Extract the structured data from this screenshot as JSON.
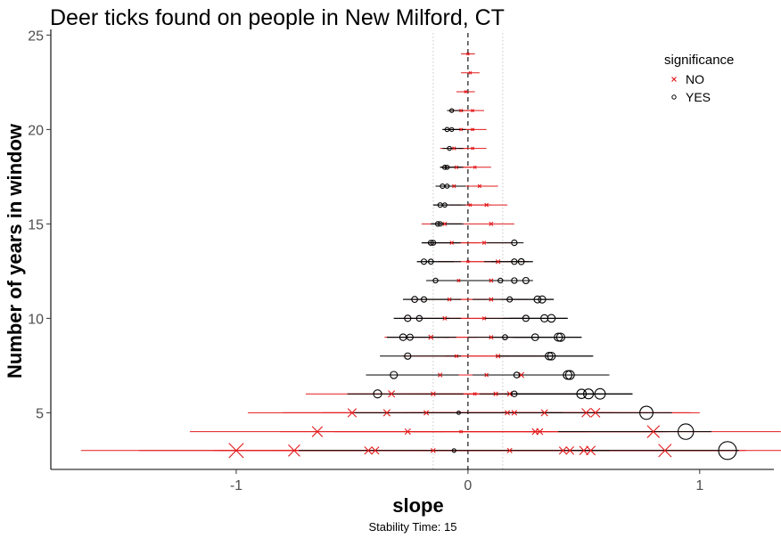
{
  "chart_data": {
    "type": "scatter",
    "title": "Deer ticks found on people in New Milford, CT",
    "xlabel": "slope",
    "ylabel": "Number of years in window",
    "caption": "Stability Time: 15",
    "xlim": [
      -1.8,
      1.32
    ],
    "ylim": [
      2.0,
      25.3
    ],
    "x_ticks": [
      -1,
      0,
      1
    ],
    "x_tick_labels": [
      "-1",
      "0",
      "1"
    ],
    "y_ticks": [
      5,
      10,
      15,
      20,
      25
    ],
    "y_tick_labels": [
      "5",
      "10",
      "15",
      "20",
      "25"
    ],
    "reference_lines": {
      "dashed_vertical_x": 0,
      "dotted_vertical_x": [
        -0.15,
        0.15
      ]
    },
    "grid": false,
    "legend": {
      "title": "significance",
      "position": "top-right",
      "entries": [
        {
          "label": "NO",
          "marker": "cross",
          "color": "#e31a1c"
        },
        {
          "label": "YES",
          "marker": "circle",
          "color": "#000000"
        }
      ]
    },
    "colors": {
      "NO": "#e31a1c",
      "YES": "#000000"
    },
    "series": [
      {
        "name": "NO",
        "marker": "cross",
        "color": "#e31a1c",
        "points": [
          {
            "y": 3,
            "slope": -1.0,
            "lo": -1.67,
            "hi": -0.32
          },
          {
            "y": 3,
            "slope": -0.75,
            "lo": -1.42,
            "hi": -0.08
          },
          {
            "y": 3,
            "slope": -0.43,
            "lo": -1.1,
            "hi": 0.24
          },
          {
            "y": 3,
            "slope": -0.4,
            "lo": -1.07,
            "hi": 0.27
          },
          {
            "y": 3,
            "slope": -0.15,
            "lo": -0.82,
            "hi": 0.52
          },
          {
            "y": 3,
            "slope": 0.18,
            "lo": -0.49,
            "hi": 0.85
          },
          {
            "y": 3,
            "slope": 0.41,
            "lo": -0.26,
            "hi": 1.08
          },
          {
            "y": 3,
            "slope": 0.44,
            "lo": -0.23,
            "hi": 1.11
          },
          {
            "y": 3,
            "slope": 0.5,
            "lo": -0.17,
            "hi": 1.17
          },
          {
            "y": 3,
            "slope": 0.53,
            "lo": -0.14,
            "hi": 1.2
          },
          {
            "y": 3,
            "slope": 0.85,
            "lo": 0.18,
            "hi": 1.52
          },
          {
            "y": 4,
            "slope": -0.65,
            "lo": -1.2,
            "hi": -0.1
          },
          {
            "y": 4,
            "slope": -0.26,
            "lo": -0.81,
            "hi": 0.29
          },
          {
            "y": 4,
            "slope": -0.03,
            "lo": -0.58,
            "hi": 0.52
          },
          {
            "y": 4,
            "slope": 0.29,
            "lo": -0.26,
            "hi": 0.84
          },
          {
            "y": 4,
            "slope": 0.31,
            "lo": -0.24,
            "hi": 0.86
          },
          {
            "y": 4,
            "slope": 0.8,
            "lo": 0.25,
            "hi": 1.35
          },
          {
            "y": 5,
            "slope": -0.5,
            "lo": -0.95,
            "hi": -0.05
          },
          {
            "y": 5,
            "slope": -0.35,
            "lo": -0.8,
            "hi": 0.1
          },
          {
            "y": 5,
            "slope": -0.18,
            "lo": -0.63,
            "hi": 0.27
          },
          {
            "y": 5,
            "slope": 0.17,
            "lo": -0.28,
            "hi": 0.62
          },
          {
            "y": 5,
            "slope": 0.2,
            "lo": -0.25,
            "hi": 0.65
          },
          {
            "y": 5,
            "slope": 0.33,
            "lo": -0.12,
            "hi": 0.78
          },
          {
            "y": 5,
            "slope": 0.51,
            "lo": 0.06,
            "hi": 0.96
          },
          {
            "y": 5,
            "slope": 0.55,
            "lo": 0.1,
            "hi": 1.0
          },
          {
            "y": 6,
            "slope": -0.33,
            "lo": -0.7,
            "hi": 0.04
          },
          {
            "y": 6,
            "slope": -0.15,
            "lo": -0.52,
            "hi": 0.22
          },
          {
            "y": 6,
            "slope": 0.03,
            "lo": -0.34,
            "hi": 0.4
          },
          {
            "y": 6,
            "slope": 0.12,
            "lo": -0.25,
            "hi": 0.49
          },
          {
            "y": 6,
            "slope": 0.18,
            "lo": -0.19,
            "hi": 0.55
          },
          {
            "y": 7,
            "slope": -0.12,
            "lo": -0.4,
            "hi": 0.16
          },
          {
            "y": 7,
            "slope": 0.08,
            "lo": -0.2,
            "hi": 0.36
          },
          {
            "y": 7,
            "slope": 0.23,
            "lo": -0.05,
            "hi": 0.51
          },
          {
            "y": 8,
            "slope": -0.05,
            "lo": -0.28,
            "hi": 0.18
          },
          {
            "y": 8,
            "slope": 0.13,
            "lo": -0.1,
            "hi": 0.36
          },
          {
            "y": 9,
            "slope": -0.16,
            "lo": -0.36,
            "hi": 0.04
          },
          {
            "y": 9,
            "slope": 0.1,
            "lo": -0.1,
            "hi": 0.3
          },
          {
            "y": 10,
            "slope": -0.1,
            "lo": -0.28,
            "hi": 0.08
          },
          {
            "y": 10,
            "slope": 0.07,
            "lo": -0.11,
            "hi": 0.25
          },
          {
            "y": 11,
            "slope": -0.08,
            "lo": -0.24,
            "hi": 0.08
          },
          {
            "y": 11,
            "slope": 0.1,
            "lo": -0.06,
            "hi": 0.26
          },
          {
            "y": 12,
            "slope": -0.04,
            "lo": -0.18,
            "hi": 0.1
          },
          {
            "y": 12,
            "slope": 0.1,
            "lo": -0.04,
            "hi": 0.24
          },
          {
            "y": 13,
            "slope": 0.0,
            "lo": -0.13,
            "hi": 0.13
          },
          {
            "y": 13,
            "slope": 0.13,
            "lo": 0.0,
            "hi": 0.26
          },
          {
            "y": 14,
            "slope": -0.07,
            "lo": -0.19,
            "hi": 0.05
          },
          {
            "y": 14,
            "slope": 0.07,
            "lo": -0.05,
            "hi": 0.19
          },
          {
            "y": 15,
            "slope": -0.1,
            "lo": -0.2,
            "hi": 0.0
          },
          {
            "y": 15,
            "slope": 0.1,
            "lo": 0.0,
            "hi": 0.2
          },
          {
            "y": 16,
            "slope": 0.01,
            "lo": -0.08,
            "hi": 0.1
          },
          {
            "y": 16,
            "slope": 0.08,
            "lo": -0.01,
            "hi": 0.17
          },
          {
            "y": 17,
            "slope": -0.06,
            "lo": -0.14,
            "hi": 0.02
          },
          {
            "y": 17,
            "slope": 0.05,
            "lo": -0.03,
            "hi": 0.13
          },
          {
            "y": 18,
            "slope": -0.05,
            "lo": -0.12,
            "hi": 0.02
          },
          {
            "y": 18,
            "slope": 0.03,
            "lo": -0.04,
            "hi": 0.1
          },
          {
            "y": 19,
            "slope": -0.06,
            "lo": -0.12,
            "hi": 0.0
          },
          {
            "y": 19,
            "slope": 0.02,
            "lo": -0.04,
            "hi": 0.08
          },
          {
            "y": 20,
            "slope": -0.03,
            "lo": -0.09,
            "hi": 0.03
          },
          {
            "y": 20,
            "slope": 0.02,
            "lo": -0.04,
            "hi": 0.08
          },
          {
            "y": 21,
            "slope": -0.03,
            "lo": -0.08,
            "hi": 0.02
          },
          {
            "y": 21,
            "slope": 0.02,
            "lo": -0.03,
            "hi": 0.07
          },
          {
            "y": 22,
            "slope": -0.01,
            "lo": -0.05,
            "hi": 0.03
          },
          {
            "y": 23,
            "slope": 0.01,
            "lo": -0.03,
            "hi": 0.05
          },
          {
            "y": 24,
            "slope": 0.0,
            "lo": -0.03,
            "hi": 0.03
          }
        ]
      },
      {
        "name": "YES",
        "marker": "circle",
        "color": "#000000",
        "points": [
          {
            "y": 3,
            "slope": -0.06,
            "lo": -0.73,
            "hi": 0.61
          },
          {
            "y": 3,
            "slope": 1.12,
            "lo": 0.45,
            "hi": 1.17
          },
          {
            "y": 4,
            "slope": 0.94,
            "lo": 0.39,
            "hi": 1.05
          },
          {
            "y": 5,
            "slope": -0.04,
            "lo": -0.49,
            "hi": 0.41
          },
          {
            "y": 5,
            "slope": 0.77,
            "lo": 0.32,
            "hi": 0.88
          },
          {
            "y": 6,
            "slope": -0.39,
            "lo": -0.52,
            "hi": -0.02
          },
          {
            "y": 6,
            "slope": 0.2,
            "lo": 0.05,
            "hi": 0.57
          },
          {
            "y": 6,
            "slope": 0.49,
            "lo": 0.16,
            "hi": 0.71
          },
          {
            "y": 6,
            "slope": 0.52,
            "lo": 0.2,
            "hi": 0.71
          },
          {
            "y": 6,
            "slope": 0.57,
            "lo": 0.2,
            "hi": 0.71
          },
          {
            "y": 7,
            "slope": -0.32,
            "lo": -0.44,
            "hi": -0.04
          },
          {
            "y": 7,
            "slope": 0.21,
            "lo": 0.02,
            "hi": 0.49
          },
          {
            "y": 7,
            "slope": 0.43,
            "lo": 0.15,
            "hi": 0.61
          },
          {
            "y": 7,
            "slope": 0.44,
            "lo": 0.16,
            "hi": 0.61
          },
          {
            "y": 8,
            "slope": -0.26,
            "lo": -0.38,
            "hi": -0.03
          },
          {
            "y": 8,
            "slope": 0.35,
            "lo": 0.12,
            "hi": 0.54
          },
          {
            "y": 8,
            "slope": 0.36,
            "lo": 0.13,
            "hi": 0.54
          },
          {
            "y": 9,
            "slope": -0.28,
            "lo": -0.35,
            "hi": -0.08
          },
          {
            "y": 9,
            "slope": -0.25,
            "lo": -0.35,
            "hi": -0.05
          },
          {
            "y": 9,
            "slope": 0.16,
            "lo": 0.0,
            "hi": 0.36
          },
          {
            "y": 9,
            "slope": 0.29,
            "lo": 0.09,
            "hi": 0.49
          },
          {
            "y": 9,
            "slope": 0.39,
            "lo": 0.19,
            "hi": 0.49
          },
          {
            "y": 9,
            "slope": 0.4,
            "lo": 0.2,
            "hi": 0.49
          },
          {
            "y": 10,
            "slope": -0.26,
            "lo": -0.32,
            "hi": -0.08
          },
          {
            "y": 10,
            "slope": -0.21,
            "lo": -0.32,
            "hi": -0.03
          },
          {
            "y": 10,
            "slope": 0.25,
            "lo": 0.07,
            "hi": 0.43
          },
          {
            "y": 10,
            "slope": 0.33,
            "lo": 0.15,
            "hi": 0.43
          },
          {
            "y": 10,
            "slope": 0.36,
            "lo": 0.18,
            "hi": 0.43
          },
          {
            "y": 11,
            "slope": -0.23,
            "lo": -0.28,
            "hi": -0.07
          },
          {
            "y": 11,
            "slope": -0.19,
            "lo": -0.28,
            "hi": -0.03
          },
          {
            "y": 11,
            "slope": 0.18,
            "lo": 0.02,
            "hi": 0.37
          },
          {
            "y": 11,
            "slope": 0.3,
            "lo": 0.14,
            "hi": 0.37
          },
          {
            "y": 11,
            "slope": 0.32,
            "lo": 0.16,
            "hi": 0.37
          },
          {
            "y": 12,
            "slope": -0.14,
            "lo": -0.18,
            "hi": 0.0
          },
          {
            "y": 12,
            "slope": 0.14,
            "lo": 0.0,
            "hi": 0.28
          },
          {
            "y": 12,
            "slope": 0.2,
            "lo": 0.06,
            "hi": 0.28
          },
          {
            "y": 12,
            "slope": 0.25,
            "lo": 0.11,
            "hi": 0.28
          },
          {
            "y": 13,
            "slope": -0.19,
            "lo": -0.22,
            "hi": -0.06
          },
          {
            "y": 13,
            "slope": -0.16,
            "lo": -0.22,
            "hi": -0.03
          },
          {
            "y": 13,
            "slope": 0.2,
            "lo": 0.07,
            "hi": 0.28
          },
          {
            "y": 13,
            "slope": 0.23,
            "lo": 0.1,
            "hi": 0.28
          },
          {
            "y": 14,
            "slope": -0.16,
            "lo": -0.2,
            "hi": -0.04
          },
          {
            "y": 14,
            "slope": -0.15,
            "lo": -0.2,
            "hi": -0.03
          },
          {
            "y": 14,
            "slope": 0.2,
            "lo": 0.08,
            "hi": 0.24
          },
          {
            "y": 15,
            "slope": -0.13,
            "lo": -0.16,
            "hi": -0.03
          },
          {
            "y": 15,
            "slope": -0.12,
            "lo": -0.16,
            "hi": -0.02
          },
          {
            "y": 16,
            "slope": -0.12,
            "lo": -0.15,
            "hi": -0.03
          },
          {
            "y": 16,
            "slope": -0.1,
            "lo": -0.15,
            "hi": -0.01
          },
          {
            "y": 17,
            "slope": -0.11,
            "lo": -0.14,
            "hi": -0.03
          },
          {
            "y": 17,
            "slope": -0.09,
            "lo": -0.14,
            "hi": -0.01
          },
          {
            "y": 18,
            "slope": -0.1,
            "lo": -0.12,
            "hi": -0.03
          },
          {
            "y": 18,
            "slope": -0.09,
            "lo": -0.12,
            "hi": -0.02
          },
          {
            "y": 19,
            "slope": -0.08,
            "lo": -0.11,
            "hi": -0.02
          },
          {
            "y": 20,
            "slope": -0.09,
            "lo": -0.11,
            "hi": -0.03
          },
          {
            "y": 20,
            "slope": -0.07,
            "lo": -0.11,
            "hi": -0.01
          },
          {
            "y": 21,
            "slope": -0.07,
            "lo": -0.09,
            "hi": -0.02
          }
        ]
      }
    ]
  }
}
